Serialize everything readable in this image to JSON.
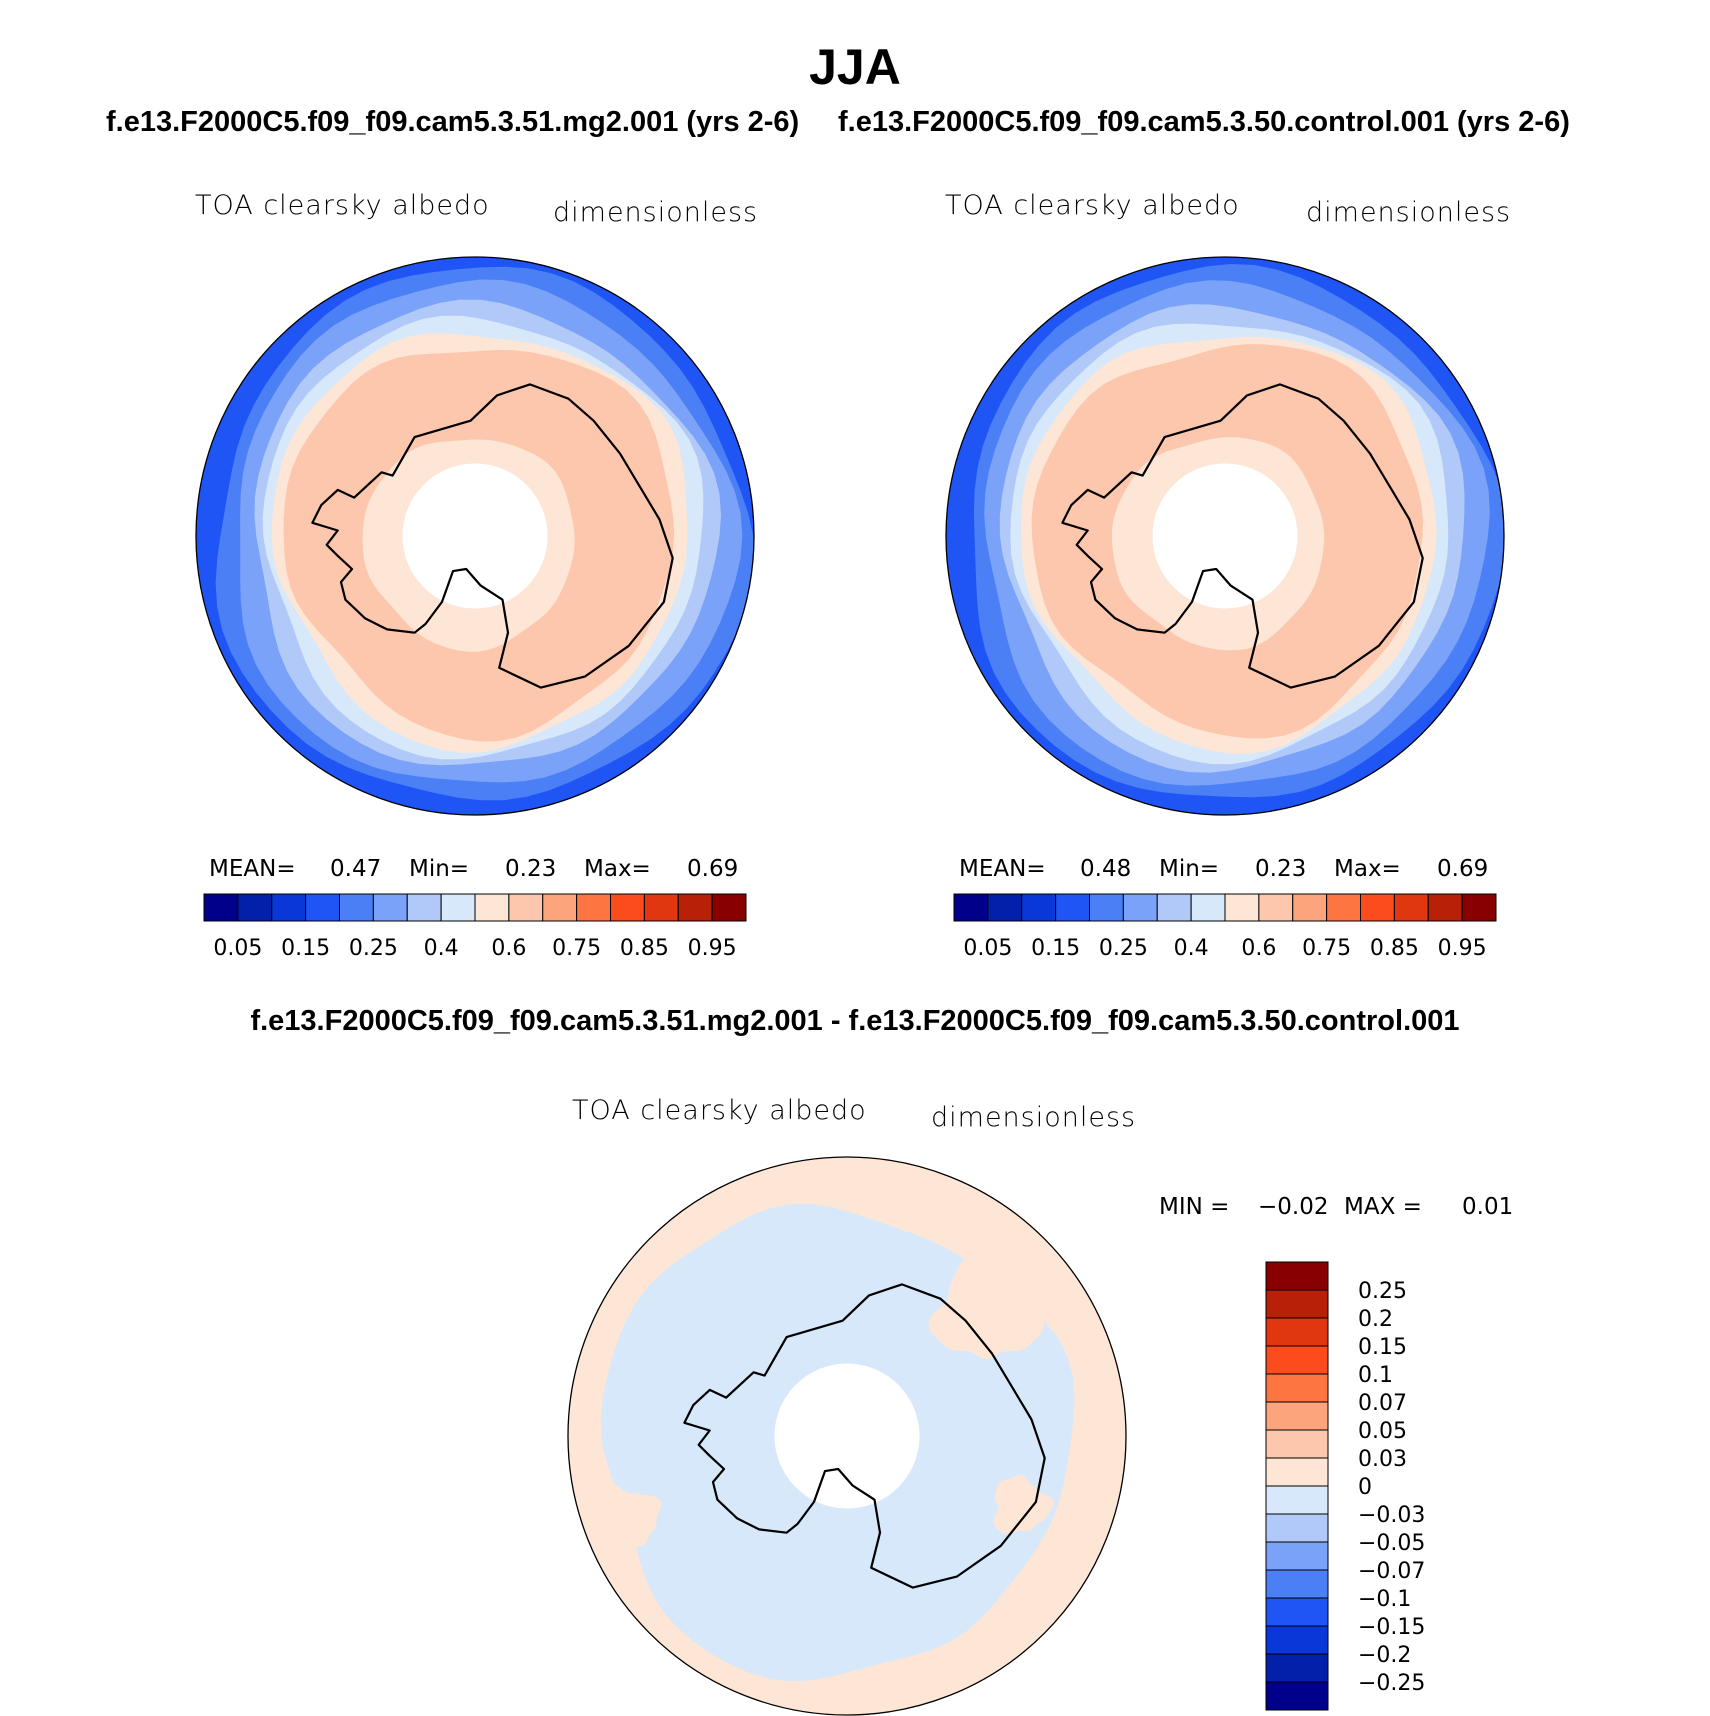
{
  "main_title": "JJA",
  "case1_title": "f.e13.F2000C5.f09_f09.cam5.3.51.mg2.001 (yrs 2-6)",
  "case2_title": "f.e13.F2000C5.f09_f09.cam5.3.50.control.001 (yrs 2-6)",
  "diff_title": "f.e13.F2000C5.f09_f09.cam5.3.51.mg2.001 - f.e13.F2000C5.f09_f09.cam5.3.50.control.001",
  "colors": {
    "abs_colorbar": [
      "#00008b",
      "#0220aa",
      "#0a38d8",
      "#1f55f5",
      "#4a7ff5",
      "#7aa2f8",
      "#b0c9f8",
      "#d6e8fa",
      "#fde6d6",
      "#fdc7ad",
      "#fca47c",
      "#fd7642",
      "#fc4c1d",
      "#e03710",
      "#b82008",
      "#880000"
    ],
    "diff_colorbar": [
      "#00008b",
      "#0220aa",
      "#0a38d8",
      "#1f55f5",
      "#4a7ff5",
      "#7aa2f8",
      "#b0c9f8",
      "#d6e8fa",
      "#fde6d6",
      "#fdc7ad",
      "#fca47c",
      "#fd7642",
      "#fc4c1d",
      "#e03710",
      "#b82008",
      "#880000"
    ],
    "coastline": "#000000"
  },
  "chart_data": [
    {
      "type": "heatmap",
      "projection": "south polar stereographic",
      "title": "f.e13.F2000C5.f09_f09.cam5.3.51.mg2.001 (yrs 2-6)",
      "left_label": "TOA clearsky albedo",
      "right_label": "dimensionless",
      "stats": {
        "mean_label": "MEAN=",
        "mean": "0.47",
        "min_label": "Min=",
        "min": "0.23",
        "max_label": "Max=",
        "max": "0.69"
      },
      "contour_levels": [
        0.05,
        0.1,
        0.15,
        0.2,
        0.25,
        0.3,
        0.4,
        0.5,
        0.6,
        0.7,
        0.75,
        0.8,
        0.85,
        0.9,
        0.95
      ],
      "colorbar_tick_labels": [
        "0.05",
        "0.15",
        "0.25",
        "0.4",
        "0.6",
        "0.75",
        "0.85",
        "0.95"
      ],
      "colorbar_orientation": "horizontal",
      "colorbar_position": "bottom"
    },
    {
      "type": "heatmap",
      "projection": "south polar stereographic",
      "title": "f.e13.F2000C5.f09_f09.cam5.3.50.control.001 (yrs 2-6)",
      "left_label": "TOA clearsky albedo",
      "right_label": "dimensionless",
      "stats": {
        "mean_label": "MEAN=",
        "mean": "0.48",
        "min_label": "Min=",
        "min": "0.23",
        "max_label": "Max=",
        "max": "0.69"
      },
      "contour_levels": [
        0.05,
        0.1,
        0.15,
        0.2,
        0.25,
        0.3,
        0.4,
        0.5,
        0.6,
        0.7,
        0.75,
        0.8,
        0.85,
        0.9,
        0.95
      ],
      "colorbar_tick_labels": [
        "0.05",
        "0.15",
        "0.25",
        "0.4",
        "0.6",
        "0.75",
        "0.85",
        "0.95"
      ],
      "colorbar_orientation": "horizontal",
      "colorbar_position": "bottom"
    },
    {
      "type": "heatmap",
      "projection": "south polar stereographic",
      "title": "f.e13.F2000C5.f09_f09.cam5.3.51.mg2.001 - f.e13.F2000C5.f09_f09.cam5.3.50.control.001",
      "left_label": "TOA clearsky albedo",
      "right_label": "dimensionless",
      "stats": {
        "min_label": "MIN =",
        "min": "−0.02",
        "max_label": "MAX =",
        "max": "0.01"
      },
      "contour_levels": [
        -0.25,
        -0.2,
        -0.15,
        -0.1,
        -0.07,
        -0.05,
        -0.03,
        0,
        0.03,
        0.05,
        0.07,
        0.1,
        0.15,
        0.2,
        0.25
      ],
      "colorbar_tick_labels": [
        "0.25",
        "0.2",
        "0.15",
        "0.1",
        "0.07",
        "0.05",
        "0.03",
        "0",
        "−0.03",
        "−0.05",
        "−0.07",
        "−0.1",
        "−0.15",
        "−0.2",
        "−0.25"
      ],
      "colorbar_orientation": "vertical",
      "colorbar_position": "right"
    }
  ]
}
